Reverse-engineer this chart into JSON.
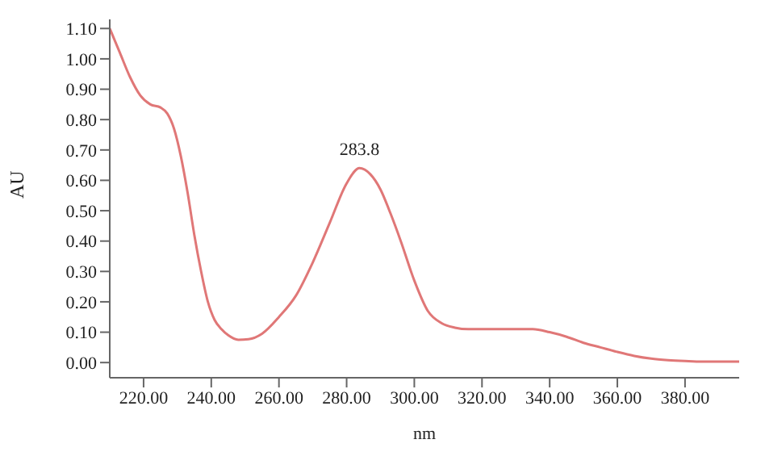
{
  "chart_data": {
    "type": "line",
    "xlabel": "nm",
    "ylabel": "AU",
    "x": [
      210,
      213,
      216,
      219,
      222,
      225,
      227,
      229,
      231,
      233,
      235,
      237,
      239,
      241,
      243,
      245,
      248,
      251,
      255,
      260,
      265,
      270,
      275,
      280,
      283.8,
      287,
      290,
      293,
      296,
      300,
      304,
      308,
      312,
      316,
      320,
      325,
      330,
      335,
      340,
      345,
      350,
      355,
      360,
      365,
      370,
      375,
      380,
      385,
      390,
      396
    ],
    "series": [
      {
        "color": "#e07777",
        "values": [
          1.1,
          1.02,
          0.94,
          0.88,
          0.85,
          0.84,
          0.82,
          0.77,
          0.68,
          0.56,
          0.42,
          0.3,
          0.2,
          0.14,
          0.11,
          0.09,
          0.075,
          0.077,
          0.095,
          0.15,
          0.22,
          0.33,
          0.46,
          0.59,
          0.64,
          0.62,
          0.57,
          0.49,
          0.4,
          0.27,
          0.17,
          0.13,
          0.115,
          0.11,
          0.11,
          0.11,
          0.11,
          0.11,
          0.1,
          0.085,
          0.065,
          0.05,
          0.035,
          0.022,
          0.013,
          0.008,
          0.005,
          0.003,
          0.003,
          0.003
        ]
      }
    ],
    "xlim": [
      210,
      396
    ],
    "ylim": [
      -0.05,
      1.13
    ],
    "xticks": [
      {
        "value": 220,
        "label": "220.00"
      },
      {
        "value": 240,
        "label": "240.00"
      },
      {
        "value": 260,
        "label": "260.00"
      },
      {
        "value": 280,
        "label": "280.00"
      },
      {
        "value": 300,
        "label": "300.00"
      },
      {
        "value": 320,
        "label": "320.00"
      },
      {
        "value": 340,
        "label": "340.00"
      },
      {
        "value": 360,
        "label": "360.00"
      },
      {
        "value": 380,
        "label": "380.00"
      }
    ],
    "yticks": [
      {
        "value": 0,
        "label": "0.00"
      },
      {
        "value": 0.1,
        "label": "0.10"
      },
      {
        "value": 0.2,
        "label": "0.20"
      },
      {
        "value": 0.3,
        "label": "0.30"
      },
      {
        "value": 0.4,
        "label": "0.40"
      },
      {
        "value": 0.5,
        "label": "0.50"
      },
      {
        "value": 0.6,
        "label": "0.60"
      },
      {
        "value": 0.7,
        "label": "0.70"
      },
      {
        "value": 0.8,
        "label": "0.80"
      },
      {
        "value": 0.9,
        "label": "0.90"
      },
      {
        "value": 1.0,
        "label": "1.00"
      },
      {
        "value": 1.1,
        "label": "1.10"
      }
    ],
    "annotations": [
      {
        "text": "283.8",
        "x": 283.8,
        "y": 0.64
      }
    ],
    "grid": false,
    "legend": false,
    "marker": "none",
    "line_style": "solid"
  }
}
